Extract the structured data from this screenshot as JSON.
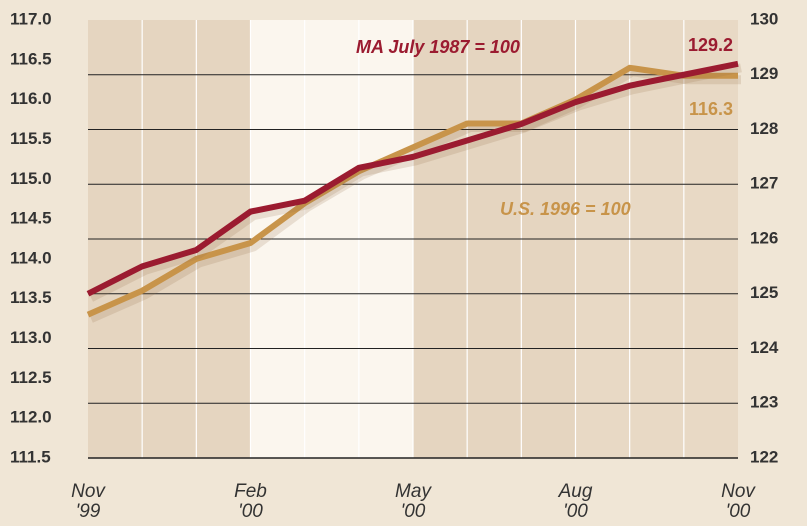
{
  "chart_data": {
    "type": "line",
    "categories": [
      "Nov '99",
      null,
      null,
      "Feb '00",
      null,
      null,
      "May '00",
      null,
      null,
      "Aug '00",
      null,
      null,
      "Nov '00"
    ],
    "series": [
      {
        "name": "MA July 1987 = 100",
        "color": "#9b1b30",
        "axis": "y2",
        "values": [
          125.0,
          125.5,
          125.8,
          126.5,
          126.7,
          127.3,
          127.5,
          127.8,
          128.1,
          128.5,
          128.8,
          129.0,
          129.2
        ]
      },
      {
        "name": "U.S. 1996 = 100",
        "color": "#c8944a",
        "axis": "y",
        "values": [
          113.3,
          113.6,
          114.0,
          114.2,
          114.7,
          115.1,
          115.4,
          115.7,
          115.7,
          116.0,
          116.4,
          116.3,
          116.3
        ]
      }
    ],
    "ylim": [
      111.5,
      117.0
    ],
    "yticks": [
      {
        "value": 111.5,
        "label": "111.5"
      },
      {
        "value": 112,
        "label": "112.0"
      },
      {
        "value": 112.5,
        "label": "112.5"
      },
      {
        "value": 113,
        "label": "113.0"
      },
      {
        "value": 113.5,
        "label": "113.5"
      },
      {
        "value": 114,
        "label": "114.0"
      },
      {
        "value": 114.5,
        "label": "114.5"
      },
      {
        "value": 115,
        "label": "115.0"
      },
      {
        "value": 115.5,
        "label": "115.5"
      },
      {
        "value": 116,
        "label": "116.0"
      },
      {
        "value": 116.5,
        "label": "116.5"
      },
      {
        "value": 117,
        "label": "117.0"
      }
    ],
    "y2lim": [
      122,
      130
    ],
    "y2ticks": [
      122,
      123,
      124,
      125,
      126,
      127,
      128,
      129,
      130
    ],
    "grid": true
  }
}
